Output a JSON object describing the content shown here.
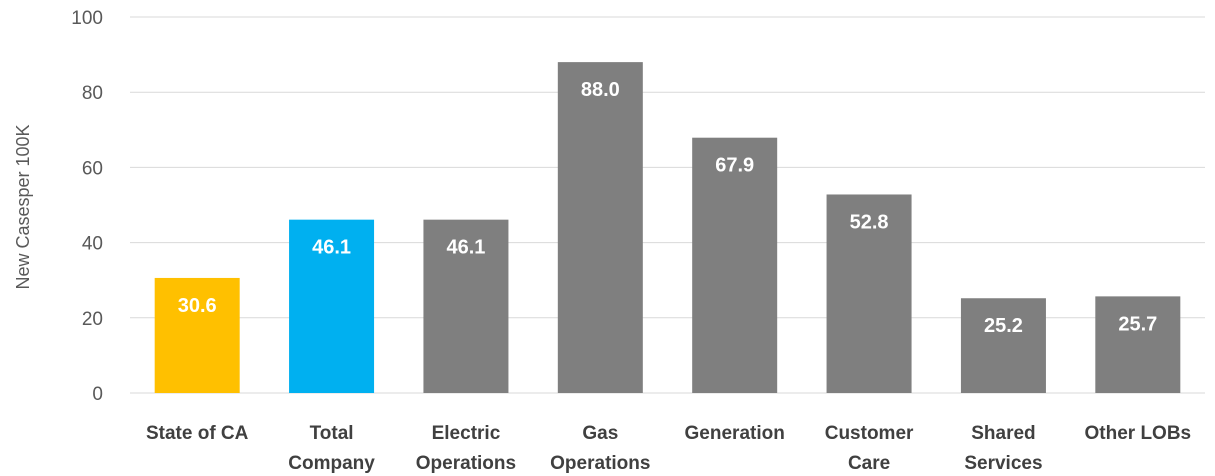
{
  "chart_data": {
    "type": "bar",
    "categories": [
      [
        "State of CA"
      ],
      [
        "Total",
        "Company"
      ],
      [
        "Electric",
        "Operations"
      ],
      [
        "Gas",
        "Operations"
      ],
      [
        "Generation"
      ],
      [
        "Customer",
        "Care"
      ],
      [
        "Shared",
        "Services"
      ],
      [
        "Other LOBs"
      ]
    ],
    "values": [
      30.6,
      46.1,
      46.1,
      88.0,
      67.9,
      52.8,
      25.2,
      25.7
    ],
    "value_labels": [
      "30.6",
      "46.1",
      "46.1",
      "88.0",
      "67.9",
      "52.8",
      "25.2",
      "25.7"
    ],
    "bar_colors": [
      "#FFC000",
      "#00B0F0",
      "#7F7F7F",
      "#7F7F7F",
      "#7F7F7F",
      "#7F7F7F",
      "#7F7F7F",
      "#7F7F7F"
    ],
    "ylabel": "New Casesper 100K",
    "xlabel": "",
    "title": "",
    "ylim": [
      0,
      100
    ],
    "yticks": [
      0,
      20,
      40,
      60,
      80,
      100
    ],
    "grid": true,
    "legend": "none"
  }
}
